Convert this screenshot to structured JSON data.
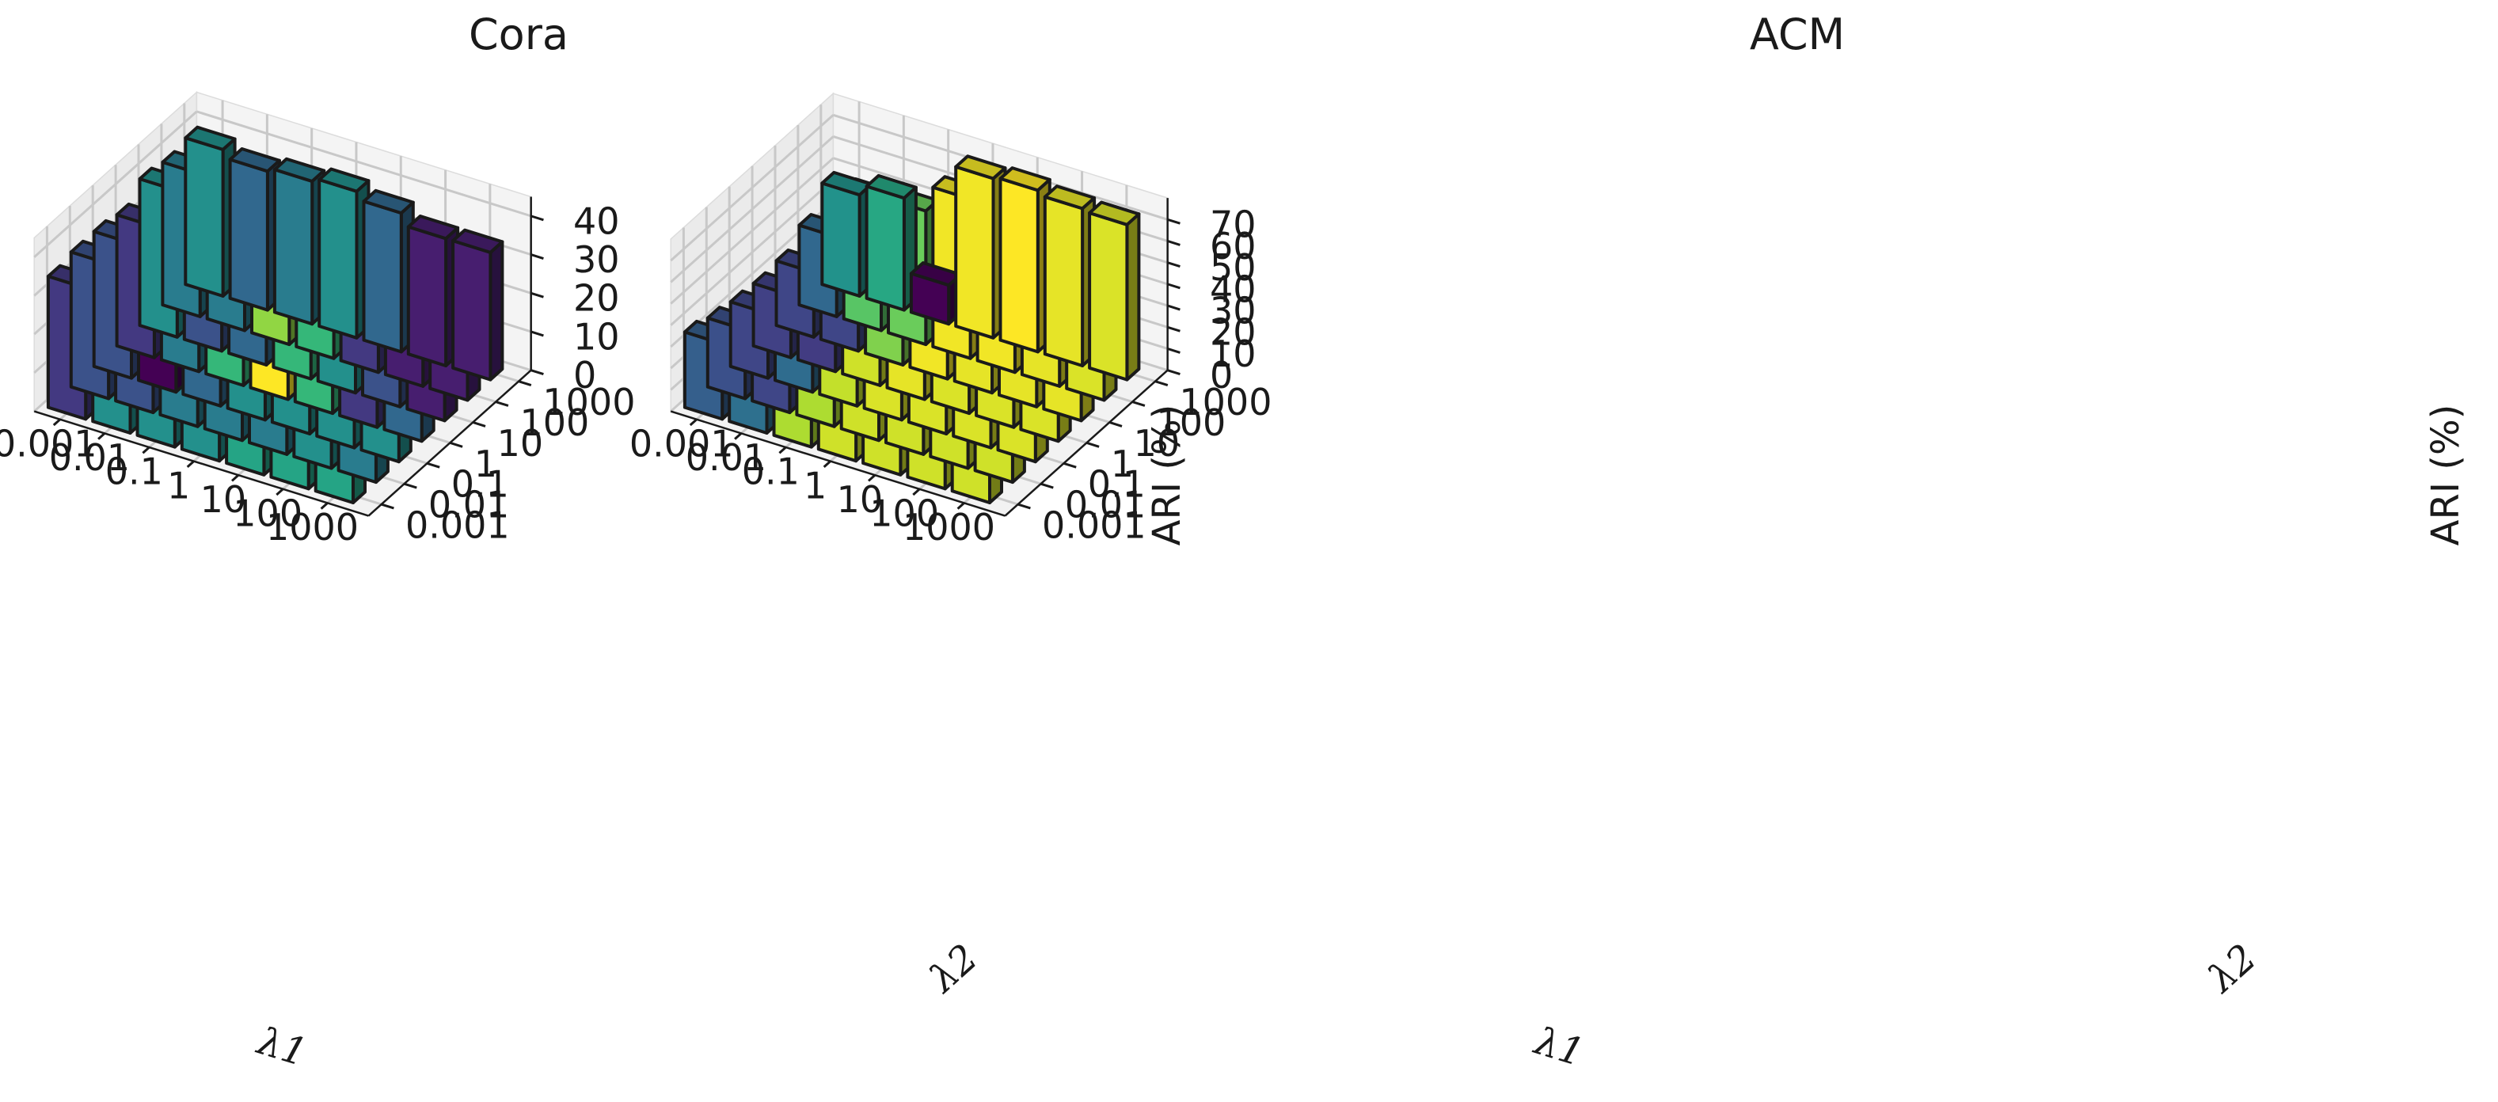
{
  "chart_data": [
    {
      "type": "bar3d",
      "title": "Cora",
      "xlabel": "λ1",
      "ylabel": "λ2",
      "zlabel": "ARI (%)",
      "x_categories": [
        "1000",
        "100",
        "10",
        "1",
        "0.1",
        "0.01",
        "0.001"
      ],
      "y_categories": [
        "0.001",
        "0.01",
        "0.1",
        "1",
        "10",
        "100",
        "1000"
      ],
      "z_ticks": [
        "0",
        "10",
        "20",
        "30",
        "40"
      ],
      "zlim": [
        0,
        45
      ],
      "colormap": "viridis",
      "values": [
        [
          39,
          37,
          38,
          36,
          33,
          33,
          33
        ],
        [
          39,
          38,
          38,
          34,
          35,
          33,
          33
        ],
        [
          39,
          37,
          38,
          40,
          38,
          34,
          36
        ],
        [
          38,
          37,
          38,
          44,
          40,
          40,
          38
        ],
        [
          38,
          37,
          36,
          40,
          36,
          42,
          37
        ],
        [
          38,
          35,
          32,
          37,
          35,
          37,
          36
        ],
        [
          34,
          35,
          35,
          34,
          38,
          37,
          38
        ]
      ]
    },
    {
      "type": "bar3d",
      "title": "ACM",
      "xlabel": "λ1",
      "ylabel": "λ2",
      "zlabel": "ARI (%)",
      "x_categories": [
        "1000",
        "100",
        "10",
        "1",
        "0.1",
        "0.01",
        "0.001"
      ],
      "y_categories": [
        "0.001",
        "0.01",
        "0.1",
        "1",
        "10",
        "100",
        "1000"
      ],
      "z_ticks": [
        "0",
        "10",
        "20",
        "30",
        "40",
        "50",
        "60",
        "70"
      ],
      "zlim": [
        0,
        80
      ],
      "colormap": "viridis",
      "values": [
        [
          71,
          71,
          72,
          72,
          73,
          72,
          72
        ],
        [
          71,
          71,
          72,
          72,
          73,
          73,
          73
        ],
        [
          71,
          71,
          72,
          72,
          73,
          74,
          75
        ],
        [
          71,
          71,
          72,
          73,
          74,
          74,
          74
        ],
        [
          68,
          68,
          70,
          71,
          64,
          62,
          18
        ],
        [
          39,
          30,
          38,
          28,
          30,
          60,
          52
        ],
        [
          35,
          32,
          30,
          29,
          30,
          37,
          47
        ]
      ]
    }
  ]
}
